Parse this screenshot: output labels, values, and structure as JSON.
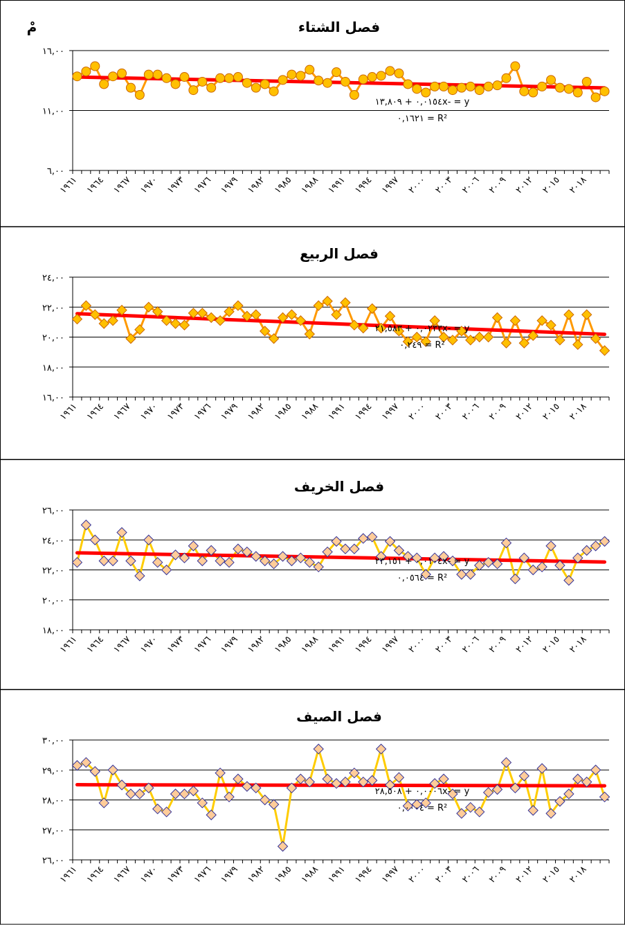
{
  "chart_data": [
    {
      "type": "line",
      "title": "فصل الشتاء",
      "unit_label": "مْ",
      "categories": [
        "١٩٦١",
        null,
        null,
        "١٩٦٤",
        null,
        null,
        "١٩٦٧",
        null,
        null,
        "١٩٧٠",
        null,
        null,
        "١٩٧٣",
        null,
        null,
        "١٩٧٦",
        null,
        null,
        "١٩٧٩",
        null,
        null,
        "١٩٨٢",
        null,
        null,
        "١٩٨٥",
        null,
        null,
        "١٩٨٨",
        null,
        null,
        "١٩٩١",
        null,
        null,
        "١٩٩٤",
        null,
        null,
        "١٩٩٧",
        null,
        null,
        "٢٠٠٠",
        null,
        null,
        "٢٠٠٣",
        null,
        null,
        "٢٠٠٦",
        null,
        null,
        "٢٠٠٩",
        null,
        null,
        "٢٠١٢",
        null,
        null,
        "٢٠١٥",
        null,
        null,
        "٢٠١٨",
        null,
        null
      ],
      "values": [
        13.85,
        14.26,
        14.7,
        13.2,
        13.85,
        14.1,
        12.9,
        12.3,
        14.0,
        14.0,
        13.7,
        13.2,
        13.8,
        12.7,
        13.4,
        12.9,
        13.7,
        13.7,
        13.8,
        13.3,
        12.9,
        13.2,
        12.6,
        13.55,
        14.0,
        13.9,
        14.4,
        13.5,
        13.3,
        14.2,
        13.4,
        12.3,
        13.6,
        13.8,
        13.9,
        14.3,
        14.1,
        13.2,
        12.8,
        12.5,
        13.0,
        13.0,
        12.7,
        12.9,
        13.0,
        12.7,
        13.0,
        13.1,
        13.7,
        14.7,
        12.6,
        12.5,
        13.0,
        13.55,
        12.9,
        12.8,
        12.5,
        13.4,
        12.1,
        12.6
      ],
      "marker": "circle",
      "line_color": "#FF9900",
      "marker_fill": "#FFC000",
      "marker_stroke": "#CC6600",
      "ylim": [
        6,
        16
      ],
      "yticks": [
        {
          "value": 6,
          "label": "٦,٠٠"
        },
        {
          "value": 11,
          "label": "١١,٠٠"
        },
        {
          "value": 16,
          "label": "١٦,٠٠"
        }
      ],
      "grid": true,
      "trendline": {
        "slope": -0.0154,
        "intercept": 13.809,
        "color": "#FF0000",
        "equation": "y = -٠,٠١٥٤x + ١٣,٨٠٩",
        "r2_label": "R² = ٠,١٦٢١"
      }
    },
    {
      "type": "line",
      "title": "فصل الربيع",
      "categories": [
        "١٩٦١",
        null,
        null,
        "١٩٦٤",
        null,
        null,
        "١٩٦٧",
        null,
        null,
        "١٩٧٠",
        null,
        null,
        "١٩٧٣",
        null,
        null,
        "١٩٧٦",
        null,
        null,
        "١٩٧٩",
        null,
        null,
        "١٩٨٢",
        null,
        null,
        "١٩٨٥",
        null,
        null,
        "١٩٨٨",
        null,
        null,
        "١٩٩١",
        null,
        null,
        "١٩٩٤",
        null,
        null,
        "١٩٩٧",
        null,
        null,
        "٢٠٠٠",
        null,
        null,
        "٢٠٠٣",
        null,
        null,
        "٢٠٠٦",
        null,
        null,
        "٢٠٠٩",
        null,
        null,
        "٢٠١٢",
        null,
        null,
        "٢٠١٥",
        null,
        null,
        "٢٠١٨",
        null,
        null
      ],
      "values": [
        21.2,
        22.1,
        21.5,
        20.9,
        21.1,
        21.8,
        19.9,
        20.5,
        22.0,
        21.7,
        21.1,
        20.9,
        20.8,
        21.6,
        21.6,
        21.3,
        21.1,
        21.7,
        22.1,
        21.4,
        21.5,
        20.4,
        19.9,
        21.3,
        21.5,
        21.1,
        20.2,
        22.1,
        22.4,
        21.5,
        22.3,
        20.8,
        20.6,
        21.9,
        20.6,
        21.4,
        20.4,
        19.7,
        20.0,
        19.7,
        21.1,
        20.0,
        19.8,
        20.4,
        19.8,
        20.0,
        20.0,
        21.3,
        19.6,
        21.1,
        19.6,
        20.1,
        21.1,
        20.8,
        19.8,
        21.5,
        19.5,
        21.5,
        19.9,
        19.1
      ],
      "marker": "diamond",
      "line_color": "#FF9900",
      "marker_fill": "#FFC000",
      "marker_stroke": "#CC6600",
      "ylim": [
        16,
        24
      ],
      "yticks": [
        {
          "value": 16,
          "label": "١٦,٠٠"
        },
        {
          "value": 18,
          "label": "١٨,٠٠"
        },
        {
          "value": 20,
          "label": "٢٠,٠٠"
        },
        {
          "value": 22,
          "label": "٢٢,٠٠"
        },
        {
          "value": 24,
          "label": "٢٤,٠٠"
        }
      ],
      "grid": true,
      "trendline": {
        "slope": -0.0233,
        "intercept": 21.583,
        "color": "#FF0000",
        "equation": "y = -٠,٠٢٣٣x + ٢١,٥٨٣",
        "r2_label": "R² = ٠,٢٤٩"
      }
    },
    {
      "type": "line",
      "title": "فصل الخريف",
      "categories": [
        "١٩٦١",
        null,
        null,
        "١٩٦٤",
        null,
        null,
        "١٩٦٧",
        null,
        null,
        "١٩٧٠",
        null,
        null,
        "١٩٧٣",
        null,
        null,
        "١٩٧٦",
        null,
        null,
        "١٩٧٩",
        null,
        null,
        "١٩٨٢",
        null,
        null,
        "١٩٨٥",
        null,
        null,
        "١٩٨٨",
        null,
        null,
        "١٩٩١",
        null,
        null,
        "١٩٩٤",
        null,
        null,
        "١٩٩٧",
        null,
        null,
        "٢٠٠٠",
        null,
        null,
        "٢٠٠٣",
        null,
        null,
        "٢٠٠٦",
        null,
        null,
        "٢٠٠٩",
        null,
        null,
        "٢٠١٢",
        null,
        null,
        "٢٠١٥",
        null,
        null,
        "٢٠١٨",
        null,
        null
      ],
      "values": [
        22.5,
        25.0,
        24.0,
        22.6,
        22.6,
        24.5,
        22.6,
        21.6,
        24.0,
        22.5,
        22.0,
        23.0,
        22.8,
        23.6,
        22.6,
        23.3,
        22.6,
        22.5,
        23.4,
        23.2,
        22.9,
        22.6,
        22.4,
        22.9,
        22.6,
        22.8,
        22.5,
        22.2,
        23.2,
        23.9,
        23.4,
        23.4,
        24.1,
        24.2,
        22.9,
        23.9,
        23.3,
        22.9,
        22.8,
        21.7,
        22.8,
        22.9,
        22.6,
        21.7,
        21.7,
        22.3,
        22.5,
        22.4,
        23.8,
        21.4,
        22.8,
        22.0,
        22.2,
        23.6,
        22.3,
        21.3,
        22.8,
        23.3,
        23.6,
        23.9
      ],
      "marker": "diamond",
      "line_color": "#FFCC00",
      "marker_fill": "#FFCC99",
      "marker_stroke": "#333399",
      "ylim": [
        18,
        26
      ],
      "yticks": [
        {
          "value": 18,
          "label": "١٨,٠٠"
        },
        {
          "value": 20,
          "label": "٢٠,٠٠"
        },
        {
          "value": 22,
          "label": "٢٢,٠٠"
        },
        {
          "value": 24,
          "label": "٢٤,٠٠"
        },
        {
          "value": 26,
          "label": "٢٦,٠٠"
        }
      ],
      "grid": true,
      "trendline": {
        "slope": -0.0104,
        "intercept": 23.151,
        "color": "#FF0000",
        "equation": "y = -٠,٠١٠٤x + ٢٣,١٥١",
        "r2_label": "R² = ٠,٠٥٦٤"
      }
    },
    {
      "type": "line",
      "title": "فصل الصيف",
      "categories": [
        "١٩٦١",
        null,
        null,
        "١٩٦٤",
        null,
        null,
        "١٩٦٧",
        null,
        null,
        "١٩٧٠",
        null,
        null,
        "١٩٧٣",
        null,
        null,
        "١٩٧٦",
        null,
        null,
        "١٩٧٩",
        null,
        null,
        "١٩٨٢",
        null,
        null,
        "١٩٨٥",
        null,
        null,
        "١٩٨٨",
        null,
        null,
        "١٩٩١",
        null,
        null,
        "١٩٩٤",
        null,
        null,
        "١٩٩٧",
        null,
        null,
        "٢٠٠٠",
        null,
        null,
        "٢٠٠٣",
        null,
        null,
        "٢٠٠٦",
        null,
        null,
        "٢٠٠٩",
        null,
        null,
        "٢٠١٢",
        null,
        null,
        "٢٠١٥",
        null,
        null,
        "٢٠١٨",
        null,
        null
      ],
      "values": [
        29.15,
        29.25,
        28.95,
        27.9,
        29.0,
        28.5,
        28.2,
        28.2,
        28.4,
        27.7,
        27.6,
        28.2,
        28.2,
        28.3,
        27.9,
        27.5,
        28.9,
        28.1,
        28.7,
        28.45,
        28.4,
        28.0,
        27.85,
        26.45,
        28.4,
        28.7,
        28.6,
        29.7,
        28.7,
        28.55,
        28.6,
        28.9,
        28.6,
        28.65,
        29.7,
        28.5,
        28.75,
        27.8,
        27.85,
        27.9,
        28.55,
        28.7,
        28.2,
        27.55,
        27.75,
        27.6,
        28.25,
        28.35,
        29.25,
        28.4,
        28.8,
        27.65,
        29.05,
        27.55,
        27.95,
        28.2,
        28.7,
        28.6,
        29.0,
        28.1
      ],
      "marker": "diamond",
      "line_color": "#FFCC00",
      "marker_fill": "#FFCC99",
      "marker_stroke": "#333399",
      "ylim": [
        26,
        30
      ],
      "yticks": [
        {
          "value": 26,
          "label": "٢٦,٠٠"
        },
        {
          "value": 27,
          "label": "٢٧,٠٠"
        },
        {
          "value": 28,
          "label": "٢٨,٠٠"
        },
        {
          "value": 29,
          "label": "٢٩,٠٠"
        },
        {
          "value": 30,
          "label": "٣٠,٠٠"
        }
      ],
      "grid": true,
      "trendline": {
        "slope": -0.0006,
        "intercept": 28.508,
        "color": "#FF0000",
        "equation": "y = -٠,٠٠٠٦x + ٢٨,٥٠٨",
        "r2_label": "R² = ٠,٠٠٠٤"
      }
    }
  ]
}
